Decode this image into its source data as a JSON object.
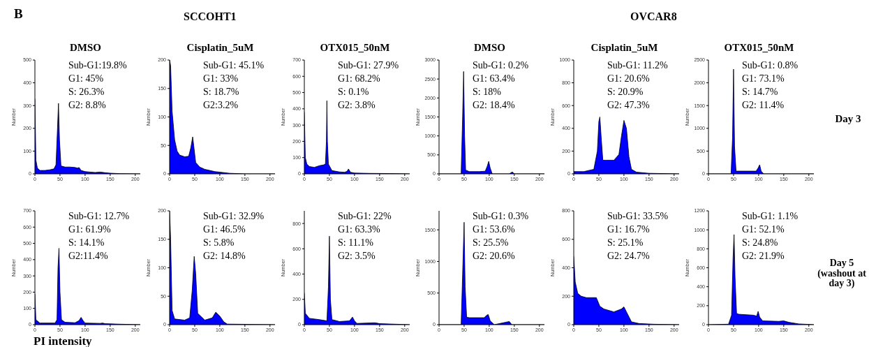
{
  "chart_data": [
    {
      "type": "area",
      "title": "DMSO",
      "ylabel": "Number",
      "color": "#0000ff",
      "xlim": [
        0,
        210
      ],
      "xticks": [
        0,
        50,
        100,
        150,
        200
      ],
      "ylim": [
        0,
        500
      ],
      "yticks": [
        0,
        100,
        200,
        300,
        400,
        500
      ],
      "annotations": [
        "Sub-G1:19.8%",
        "G1: 45%",
        "S: 26.3%",
        "G2: 8.8%"
      ],
      "x": [
        0,
        2,
        5,
        10,
        20,
        30,
        38,
        42,
        45,
        47,
        49,
        52,
        60,
        70,
        80,
        85,
        88,
        92,
        100,
        110,
        120,
        130,
        140,
        150,
        170,
        210
      ],
      "values": [
        330,
        60,
        25,
        15,
        15,
        18,
        22,
        40,
        200,
        310,
        150,
        35,
        30,
        30,
        28,
        25,
        28,
        15,
        10,
        8,
        6,
        8,
        5,
        3,
        1,
        0
      ]
    },
    {
      "type": "area",
      "title": "Cisplatin_5uM",
      "ylabel": "Number",
      "color": "#0000ff",
      "xlim": [
        0,
        210
      ],
      "xticks": [
        0,
        50,
        100,
        150,
        200
      ],
      "ylim": [
        0,
        200
      ],
      "yticks": [
        0,
        50,
        100,
        150,
        200
      ],
      "annotations": [
        "Sub-G1: 45.1%",
        "G1: 33%",
        "S: 18.7%",
        "G2:3.2%"
      ],
      "x": [
        0,
        2,
        5,
        10,
        15,
        20,
        30,
        38,
        42,
        46,
        48,
        52,
        60,
        70,
        80,
        90,
        100,
        120,
        150,
        210
      ],
      "values": [
        200,
        190,
        110,
        60,
        40,
        33,
        30,
        31,
        45,
        65,
        50,
        20,
        12,
        8,
        6,
        4,
        3,
        1,
        0,
        0
      ]
    },
    {
      "type": "area",
      "title": "OTX015_50nM",
      "ylabel": "Number",
      "color": "#0000ff",
      "xlim": [
        0,
        210
      ],
      "xticks": [
        0,
        50,
        100,
        150,
        200
      ],
      "ylim": [
        0,
        700
      ],
      "yticks": [
        0,
        100,
        200,
        300,
        400,
        500,
        600,
        700
      ],
      "annotations": [
        "Sub-G1: 27.9%",
        "G1: 68.2%",
        "S: 0.1%",
        "G2: 3.8%"
      ],
      "x": [
        0,
        2,
        5,
        10,
        20,
        30,
        38,
        42,
        44,
        45,
        46,
        48,
        55,
        70,
        80,
        85,
        88,
        92,
        100,
        130,
        170,
        210
      ],
      "values": [
        380,
        100,
        60,
        45,
        40,
        50,
        55,
        60,
        200,
        450,
        200,
        60,
        20,
        12,
        10,
        15,
        30,
        10,
        5,
        3,
        2,
        0
      ]
    },
    {
      "type": "area",
      "title": "DMSO",
      "ylabel": "Number",
      "color": "#0000ff",
      "xlim": [
        0,
        210
      ],
      "xticks": [
        0,
        50,
        100,
        150,
        200
      ],
      "ylim": [
        0,
        3000
      ],
      "yticks": [
        0,
        500,
        1000,
        1500,
        2000,
        2500,
        3000
      ],
      "annotations": [
        "Sub-G1: 0.2%",
        "G1: 63.4%",
        "S: 18%",
        "G2: 18.4%"
      ],
      "x": [
        0,
        44,
        47,
        49,
        51,
        53,
        60,
        80,
        92,
        96,
        99,
        102,
        106,
        130,
        140,
        146,
        150,
        160,
        210
      ],
      "values": [
        0,
        0,
        1500,
        2700,
        1000,
        100,
        60,
        60,
        70,
        200,
        330,
        150,
        0,
        0,
        0,
        50,
        0,
        0,
        0
      ]
    },
    {
      "type": "area",
      "title": "Cisplatin_5uM",
      "ylabel": "Number",
      "color": "#0000ff",
      "xlim": [
        0,
        210
      ],
      "xticks": [
        0,
        50,
        100,
        150,
        200
      ],
      "ylim": [
        0,
        1000
      ],
      "yticks": [
        0,
        200,
        400,
        600,
        800,
        1000
      ],
      "annotations": [
        "Sub-G1: 11.2%",
        "G1: 20.6%",
        "S: 20.9%",
        "G2: 47.3%"
      ],
      "x": [
        0,
        20,
        40,
        47,
        50,
        52,
        55,
        58,
        65,
        80,
        90,
        95,
        100,
        105,
        110,
        115,
        125,
        150,
        210
      ],
      "values": [
        20,
        20,
        40,
        200,
        460,
        500,
        300,
        120,
        120,
        120,
        170,
        330,
        470,
        400,
        150,
        40,
        15,
        5,
        0
      ]
    },
    {
      "type": "area",
      "title": "OTX015_50nM",
      "ylabel": "Number",
      "color": "#0000ff",
      "xlim": [
        0,
        210
      ],
      "xticks": [
        0,
        50,
        100,
        150,
        200
      ],
      "ylim": [
        0,
        2500
      ],
      "yticks": [
        0,
        500,
        1000,
        1500,
        2000,
        2500
      ],
      "annotations": [
        "Sub-G1: 0.8%",
        "G1: 73.1%",
        "S: 14.7%",
        "G2: 11.4%"
      ],
      "x": [
        0,
        45,
        48,
        50,
        52,
        55,
        80,
        95,
        99,
        102,
        105,
        110,
        150,
        210
      ],
      "values": [
        0,
        0,
        800,
        2300,
        600,
        60,
        60,
        60,
        130,
        200,
        60,
        0,
        0,
        0
      ]
    },
    {
      "type": "area",
      "ylabel": "Number",
      "color": "#0000ff",
      "xlim": [
        0,
        210
      ],
      "xticks": [
        0,
        50,
        100,
        150,
        200
      ],
      "ylim": [
        0,
        700
      ],
      "yticks": [
        0,
        100,
        200,
        300,
        400,
        500,
        600,
        700
      ],
      "annotations": [
        "Sub-G1: 12.7%",
        "G1: 61.9%",
        "S: 14.1%",
        "G2:11.4%"
      ],
      "x": [
        0,
        2,
        10,
        40,
        44,
        46,
        48,
        50,
        53,
        60,
        80,
        88,
        92,
        96,
        100,
        130,
        135,
        140,
        170,
        210
      ],
      "values": [
        190,
        30,
        10,
        10,
        30,
        350,
        470,
        200,
        30,
        15,
        12,
        25,
        45,
        25,
        10,
        8,
        10,
        6,
        3,
        0
      ]
    },
    {
      "type": "area",
      "ylabel": "Number",
      "color": "#0000ff",
      "xlim": [
        0,
        210
      ],
      "xticks": [
        0,
        50,
        100,
        150,
        200
      ],
      "ylim": [
        0,
        200
      ],
      "yticks": [
        0,
        50,
        100,
        150,
        200
      ],
      "annotations": [
        "Sub-G1: 32.9%",
        "G1: 46.5%",
        "S: 5.8%",
        "G2: 14.8%"
      ],
      "x": [
        0,
        2,
        5,
        10,
        30,
        40,
        45,
        49,
        52,
        56,
        70,
        85,
        92,
        100,
        108,
        115,
        210
      ],
      "values": [
        200,
        150,
        25,
        10,
        8,
        12,
        60,
        120,
        90,
        20,
        8,
        12,
        22,
        15,
        5,
        1,
        0
      ]
    },
    {
      "type": "area",
      "ylabel": "Number",
      "color": "#0000ff",
      "xlim": [
        0,
        210
      ],
      "xticks": [
        0,
        50,
        100,
        150,
        200
      ],
      "ylim": [
        0,
        900
      ],
      "yticks": [
        0,
        200,
        400,
        600,
        800
      ],
      "annotations": [
        "Sub-G1: 22%",
        "G1: 63.3%",
        "S: 11.1%",
        "G2: 3.5%"
      ],
      "x": [
        0,
        2,
        10,
        30,
        45,
        48,
        50,
        52,
        55,
        70,
        90,
        96,
        100,
        105,
        140,
        145,
        150,
        210
      ],
      "values": [
        250,
        90,
        50,
        40,
        30,
        300,
        700,
        200,
        40,
        25,
        30,
        60,
        30,
        10,
        15,
        12,
        8,
        0
      ]
    },
    {
      "type": "area",
      "ylabel": "Number",
      "color": "#0000ff",
      "xlim": [
        0,
        210
      ],
      "xticks": [
        0,
        50,
        100,
        150,
        200
      ],
      "ylim": [
        0,
        1800
      ],
      "yticks": [
        0,
        500,
        1000,
        1500
      ],
      "annotations": [
        "Sub-G1: 0.3%",
        "G1: 53.6%",
        "S: 25.5%",
        "G2: 20.6%"
      ],
      "x": [
        0,
        44,
        47,
        50,
        52,
        55,
        60,
        90,
        95,
        98,
        102,
        110,
        140,
        145,
        160,
        210
      ],
      "values": [
        0,
        0,
        800,
        1620,
        600,
        120,
        110,
        110,
        150,
        160,
        60,
        0,
        50,
        0,
        0,
        0
      ]
    },
    {
      "type": "area",
      "ylabel": "Number",
      "color": "#0000ff",
      "xlim": [
        0,
        210
      ],
      "xticks": [
        0,
        50,
        100,
        150,
        200
      ],
      "ylim": [
        0,
        800
      ],
      "yticks": [
        0,
        200,
        400,
        600,
        800
      ],
      "annotations": [
        "Sub-G1: 33.5%",
        "G1: 16.7%",
        "S: 25.1%",
        "G2: 24.7%"
      ],
      "x": [
        0,
        3,
        8,
        15,
        25,
        45,
        52,
        60,
        80,
        95,
        100,
        105,
        115,
        130,
        160,
        210
      ],
      "values": [
        480,
        300,
        220,
        200,
        190,
        190,
        130,
        110,
        90,
        110,
        125,
        90,
        20,
        8,
        3,
        0
      ]
    },
    {
      "type": "area",
      "ylabel": "Number",
      "color": "#0000ff",
      "xlim": [
        0,
        210
      ],
      "xticks": [
        0,
        50,
        100,
        150,
        200
      ],
      "ylim": [
        0,
        1200
      ],
      "yticks": [
        0,
        200,
        400,
        600,
        800,
        1000,
        1200
      ],
      "annotations": [
        "Sub-G1: 1.1%",
        "G1: 52.1%",
        "S: 24.8%",
        "G2: 21.9%"
      ],
      "x": [
        0,
        40,
        46,
        49,
        51,
        53,
        56,
        60,
        90,
        96,
        99,
        102,
        108,
        140,
        150,
        160,
        180,
        210
      ],
      "values": [
        0,
        5,
        100,
        700,
        950,
        500,
        120,
        110,
        100,
        90,
        140,
        80,
        40,
        35,
        40,
        25,
        8,
        0
      ]
    },
    {
      "type": "other",
      "annotations": [
        "B",
        "SCCOHT1",
        "OVCAR8",
        "Day 3",
        "Day 5 (washout at day 3)",
        "PI intensity"
      ]
    }
  ]
}
